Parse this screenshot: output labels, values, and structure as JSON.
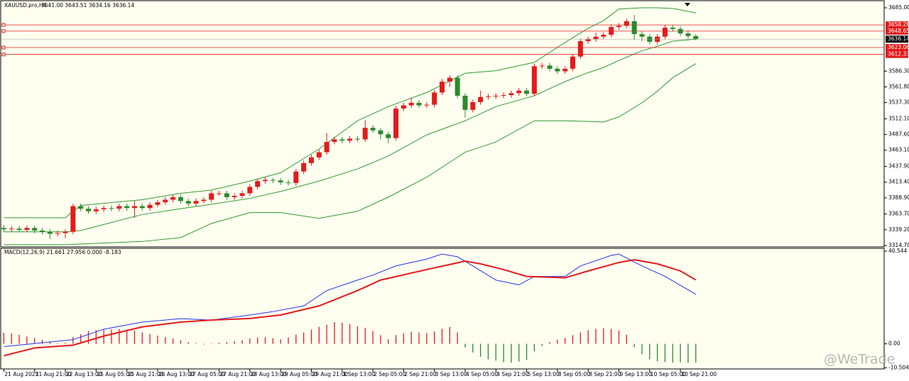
{
  "chart_data": {
    "type": "candlestick",
    "title": "XAUUSD.pro,H4",
    "quote": "3641.00 3643.51 3634.16 3636.14",
    "watermark": "@WeTrade",
    "up_color": "#e31b1b",
    "down_color": "#2b8a2b",
    "x": [
      0,
      1,
      2,
      3,
      4,
      5,
      6,
      7,
      8,
      9,
      10,
      11,
      12,
      13,
      14,
      15,
      16,
      17,
      18,
      19,
      20,
      21,
      22,
      23,
      24,
      25,
      26,
      27,
      28,
      29,
      30,
      31,
      32,
      33,
      34,
      35,
      36,
      37,
      38,
      39,
      40,
      41,
      42,
      43,
      44,
      45,
      46,
      47,
      48,
      49,
      50,
      51,
      52,
      53,
      54,
      55,
      56,
      57,
      58,
      59,
      60,
      61,
      62,
      63,
      64,
      65,
      66,
      67,
      68,
      69,
      70,
      71,
      72,
      73,
      74,
      75,
      76,
      77,
      78,
      79,
      80,
      81,
      82,
      83,
      84,
      85,
      86,
      87,
      88,
      89,
      90
    ],
    "open": [
      3342,
      3340,
      3341,
      3339,
      3342,
      3338,
      3336,
      3333,
      3334,
      3336,
      3376,
      3372,
      3368,
      3371,
      3373,
      3372,
      3376,
      3373,
      3376,
      3373,
      3378,
      3382,
      3386,
      3390,
      3384,
      3380,
      3384,
      3386,
      3396,
      3396,
      3390,
      3392,
      3396,
      3406,
      3415,
      3417,
      3416,
      3413,
      3412,
      3430,
      3443,
      3452,
      3460,
      3476,
      3480,
      3478,
      3481,
      3480,
      3498,
      3494,
      3488,
      3482,
      3528,
      3533,
      3537,
      3533,
      3534,
      3553,
      3570,
      3576,
      3548,
      3526,
      3538,
      3546,
      3547,
      3548,
      3549,
      3552,
      3556,
      3551,
      3594,
      3595,
      3590,
      3586,
      3590,
      3609,
      3633,
      3636,
      3640,
      3643,
      3655,
      3657,
      3664,
      3644,
      3640,
      3632,
      3640,
      3654,
      3652,
      3645,
      3641
    ],
    "high": [
      3346,
      3345,
      3345,
      3346,
      3346,
      3342,
      3340,
      3338,
      3340,
      3380,
      3380,
      3376,
      3375,
      3377,
      3377,
      3380,
      3380,
      3384,
      3380,
      3382,
      3386,
      3390,
      3394,
      3394,
      3388,
      3388,
      3390,
      3400,
      3400,
      3400,
      3396,
      3400,
      3410,
      3419,
      3421,
      3420,
      3420,
      3417,
      3434,
      3447,
      3456,
      3464,
      3490,
      3484,
      3484,
      3485,
      3485,
      3510,
      3502,
      3498,
      3492,
      3532,
      3537,
      3545,
      3541,
      3538,
      3557,
      3574,
      3580,
      3580,
      3552,
      3542,
      3556,
      3551,
      3552,
      3553,
      3556,
      3560,
      3560,
      3598,
      3599,
      3599,
      3594,
      3594,
      3613,
      3637,
      3640,
      3646,
      3647,
      3659,
      3661,
      3668,
      3674,
      3648,
      3644,
      3644,
      3658,
      3658,
      3656,
      3650,
      3643.51
    ],
    "low": [
      3336,
      3336,
      3335,
      3335,
      3334,
      3332,
      3325,
      3329,
      3326,
      3332,
      3368,
      3364,
      3364,
      3367,
      3368,
      3368,
      3369,
      3358,
      3369,
      3369,
      3374,
      3378,
      3382,
      3380,
      3376,
      3376,
      3380,
      3382,
      3392,
      3386,
      3386,
      3388,
      3392,
      3402,
      3411,
      3412,
      3409,
      3408,
      3408,
      3426,
      3439,
      3448,
      3456,
      3472,
      3474,
      3474,
      3476,
      3476,
      3490,
      3480,
      3474,
      3478,
      3524,
      3529,
      3529,
      3529,
      3530,
      3549,
      3562,
      3544,
      3514,
      3522,
      3534,
      3542,
      3543,
      3544,
      3545,
      3548,
      3547,
      3547,
      3590,
      3586,
      3582,
      3582,
      3586,
      3605,
      3629,
      3632,
      3636,
      3639,
      3651,
      3653,
      3635,
      3633,
      3628,
      3628,
      3636,
      3648,
      3641,
      3637,
      3634.16
    ],
    "close": [
      3340,
      3341,
      3339,
      3342,
      3338,
      3336,
      3333,
      3334,
      3336,
      3376,
      3372,
      3368,
      3371,
      3373,
      3372,
      3376,
      3373,
      3376,
      3373,
      3378,
      3382,
      3386,
      3390,
      3384,
      3380,
      3384,
      3386,
      3396,
      3396,
      3390,
      3392,
      3396,
      3406,
      3415,
      3417,
      3416,
      3413,
      3412,
      3430,
      3443,
      3452,
      3460,
      3476,
      3480,
      3478,
      3481,
      3480,
      3498,
      3494,
      3488,
      3482,
      3528,
      3533,
      3537,
      3533,
      3534,
      3553,
      3570,
      3576,
      3548,
      3526,
      3538,
      3546,
      3547,
      3548,
      3549,
      3552,
      3556,
      3551,
      3594,
      3595,
      3590,
      3586,
      3590,
      3609,
      3633,
      3636,
      3640,
      3643,
      3655,
      3657,
      3664,
      3644,
      3640,
      3632,
      3640,
      3654,
      3652,
      3645,
      3641,
      3636.14
    ],
    "bands": [
      {
        "color": "#2e9b2e",
        "x": [
          0,
          8,
          10,
          18,
          23,
          27,
          32,
          36,
          41,
          46,
          50,
          55,
          60,
          64,
          69,
          73,
          76,
          78,
          80,
          83,
          85,
          87,
          90
        ],
        "values": [
          3358,
          3358,
          3377,
          3386,
          3396,
          3401,
          3415,
          3428,
          3465,
          3509,
          3531,
          3553,
          3583,
          3587,
          3600,
          3631,
          3653,
          3665,
          3683,
          3685,
          3685,
          3684,
          3677
        ]
      },
      {
        "color": "#2e9b2e",
        "x": [
          0,
          8,
          10,
          18,
          23,
          27,
          32,
          36,
          41,
          46,
          50,
          55,
          60,
          64,
          69,
          73,
          76,
          78,
          80,
          83,
          85,
          87,
          90
        ],
        "values": [
          3336,
          3336,
          3338,
          3363,
          3372,
          3379,
          3388,
          3399,
          3415,
          3434,
          3454,
          3487,
          3509,
          3531,
          3548,
          3570,
          3584,
          3592,
          3603,
          3618,
          3625,
          3633,
          3636
        ]
      },
      {
        "color": "#2e9b2e",
        "x": [
          0,
          8,
          10,
          18,
          23,
          27,
          32,
          36,
          41,
          46,
          50,
          55,
          60,
          64,
          69,
          73,
          76,
          78,
          80,
          83,
          85,
          87,
          90
        ],
        "values": [
          3316,
          3316,
          3317,
          3321,
          3327,
          3349,
          3366,
          3366,
          3357,
          3368,
          3390,
          3421,
          3460,
          3476,
          3509,
          3509,
          3508,
          3507,
          3515,
          3537,
          3555,
          3576,
          3598
        ]
      }
    ],
    "levels": [
      {
        "value": 3658.28,
        "color": "#e31b1b"
      },
      {
        "value": 3648.65,
        "color": "#e31b1b"
      },
      {
        "value": 3623.06,
        "color": "#e31b1b"
      },
      {
        "value": 3612.33,
        "color": "#e31b1b"
      }
    ],
    "current_price": {
      "value": 3636.14,
      "color": "#000000"
    },
    "xlim": [
      -0.5,
      114.5
    ],
    "xticks": [
      {
        "value": 0,
        "label": "21 Aug 2025"
      },
      {
        "value": 4,
        "label": "21 Aug 21:00"
      },
      {
        "value": 8,
        "label": "22 Aug 13:00"
      },
      {
        "value": 12,
        "label": "25 Aug 05:00"
      },
      {
        "value": 16,
        "label": "25 Aug 21:00"
      },
      {
        "value": 20,
        "label": "26 Aug 13:00"
      },
      {
        "value": 24,
        "label": "27 Aug 05:00"
      },
      {
        "value": 28,
        "label": "27 Aug 21:00"
      },
      {
        "value": 32,
        "label": "28 Aug 13:00"
      },
      {
        "value": 36,
        "label": "29 Aug 05:00"
      },
      {
        "value": 40,
        "label": "29 Aug 21:00"
      },
      {
        "value": 44,
        "label": "1 Sep 13:00"
      },
      {
        "value": 48,
        "label": "2 Sep 05:00"
      },
      {
        "value": 52,
        "label": "2 Sep 21:00"
      },
      {
        "value": 56,
        "label": "3 Sep 13:00"
      },
      {
        "value": 60,
        "label": "4 Sep 05:00"
      },
      {
        "value": 64,
        "label": "4 Sep 21:00"
      },
      {
        "value": 68,
        "label": "5 Sep 13:00"
      },
      {
        "value": 72,
        "label": "8 Sep 05:00"
      },
      {
        "value": 76,
        "label": "8 Sep 21:00"
      },
      {
        "value": 80,
        "label": "9 Sep 13:00"
      },
      {
        "value": 84,
        "label": "10 Sep 05:00"
      },
      {
        "value": 88,
        "label": "10 Sep 21:00"
      }
    ],
    "ylim": [
      3312.5,
      3694.9
    ],
    "yticks": [
      {
        "value": 3685,
        "label": "3685.00"
      },
      {
        "value": 3586.3,
        "label": "3586.30"
      },
      {
        "value": 3561.8,
        "label": "3561.80"
      },
      {
        "value": 3537.3,
        "label": "3537.30"
      },
      {
        "value": 3512.1,
        "label": "3512.10"
      },
      {
        "value": 3487.6,
        "label": "3487.60"
      },
      {
        "value": 3463.1,
        "label": "3463.10"
      },
      {
        "value": 3437.9,
        "label": "3437.90"
      },
      {
        "value": 3413.4,
        "label": "3413.40"
      },
      {
        "value": 3388.9,
        "label": "3388.90"
      },
      {
        "value": 3363.7,
        "label": "3363.70"
      },
      {
        "value": 3339.2,
        "label": "3339.20"
      },
      {
        "value": 3314.7,
        "label": "3314.70"
      }
    ],
    "indicator": {
      "type": "macd",
      "title": "MACD(12,26,9) 21.661 27.956 0.000 -8.183",
      "ylim": [
        -11,
        41.8
      ],
      "yticks": [
        40.544,
        {
          "value": 0,
          "label": "0.00"
        },
        -10.504
      ],
      "histogram": {
        "up_color": "#e31b1b",
        "down_color": "#2b8a2b",
        "values": [
          4.8,
          4.5,
          3.9,
          3.2,
          2.6,
          1.8,
          1.0,
          0.3,
          0.5,
          3.0,
          4.2,
          5.6,
          6.0,
          6.2,
          6.3,
          6.5,
          6.2,
          5.8,
          5.0,
          4.3,
          3.6,
          3.0,
          2.3,
          1.5,
          0.8,
          0.3,
          -0.3,
          0.2,
          0.5,
          0.8,
          1.1,
          1.6,
          2.3,
          2.7,
          2.9,
          2.5,
          2.0,
          2.8,
          4.0,
          5.0,
          6.2,
          7.4,
          8.4,
          9.5,
          9.3,
          8.6,
          7.7,
          7.0,
          5.6,
          3.8,
          2.0,
          3.8,
          4.6,
          5.3,
          5.0,
          4.7,
          5.4,
          6.6,
          7.4,
          5.0,
          -1.6,
          -3.8,
          -5.7,
          -6.8,
          -7.4,
          -8.0,
          -8.2,
          -7.8,
          -7.0,
          -3.3,
          -1.0,
          0.8,
          1.8,
          2.6,
          3.8,
          5.0,
          6.0,
          6.6,
          6.8,
          6.6,
          5.8,
          4.0,
          -1.5,
          -4.5,
          -6.8,
          -7.6,
          -8.0,
          -8.2,
          -8.1,
          -8.3,
          -8.183
        ]
      },
      "lines": [
        {
          "color": "#2233ee",
          "width": 1,
          "x": [
            0,
            9,
            13,
            18,
            23,
            27,
            32,
            35,
            39,
            42,
            46,
            48,
            51,
            55,
            57,
            59,
            61,
            64,
            67,
            69,
            73,
            75,
            79,
            80,
            83,
            86,
            90
          ],
          "values": [
            -1.2,
            1.8,
            6.4,
            9.5,
            11,
            10.4,
            12.6,
            14.1,
            16.6,
            23.3,
            27.9,
            30.1,
            34.1,
            37.1,
            39.3,
            38.1,
            34.1,
            27.9,
            25.8,
            29.5,
            29.5,
            34.1,
            38.7,
            39.3,
            34.1,
            29.5,
            21.661
          ]
        },
        {
          "color": "#e31b1b",
          "width": 2,
          "x": [
            0,
            4,
            9,
            13,
            18,
            23,
            27,
            32,
            36,
            41,
            46,
            49,
            55,
            60,
            62,
            65,
            68,
            73,
            76,
            80,
            82,
            85,
            88,
            90
          ],
          "values": [
            -5.2,
            -1.8,
            -0.6,
            3.4,
            7.4,
            9.5,
            10.4,
            11.1,
            12.6,
            16.6,
            23.3,
            27.9,
            32.5,
            36.2,
            35,
            32.5,
            29.5,
            28.9,
            31.9,
            35.6,
            36.8,
            35,
            31.9,
            27.956
          ]
        }
      ]
    }
  }
}
